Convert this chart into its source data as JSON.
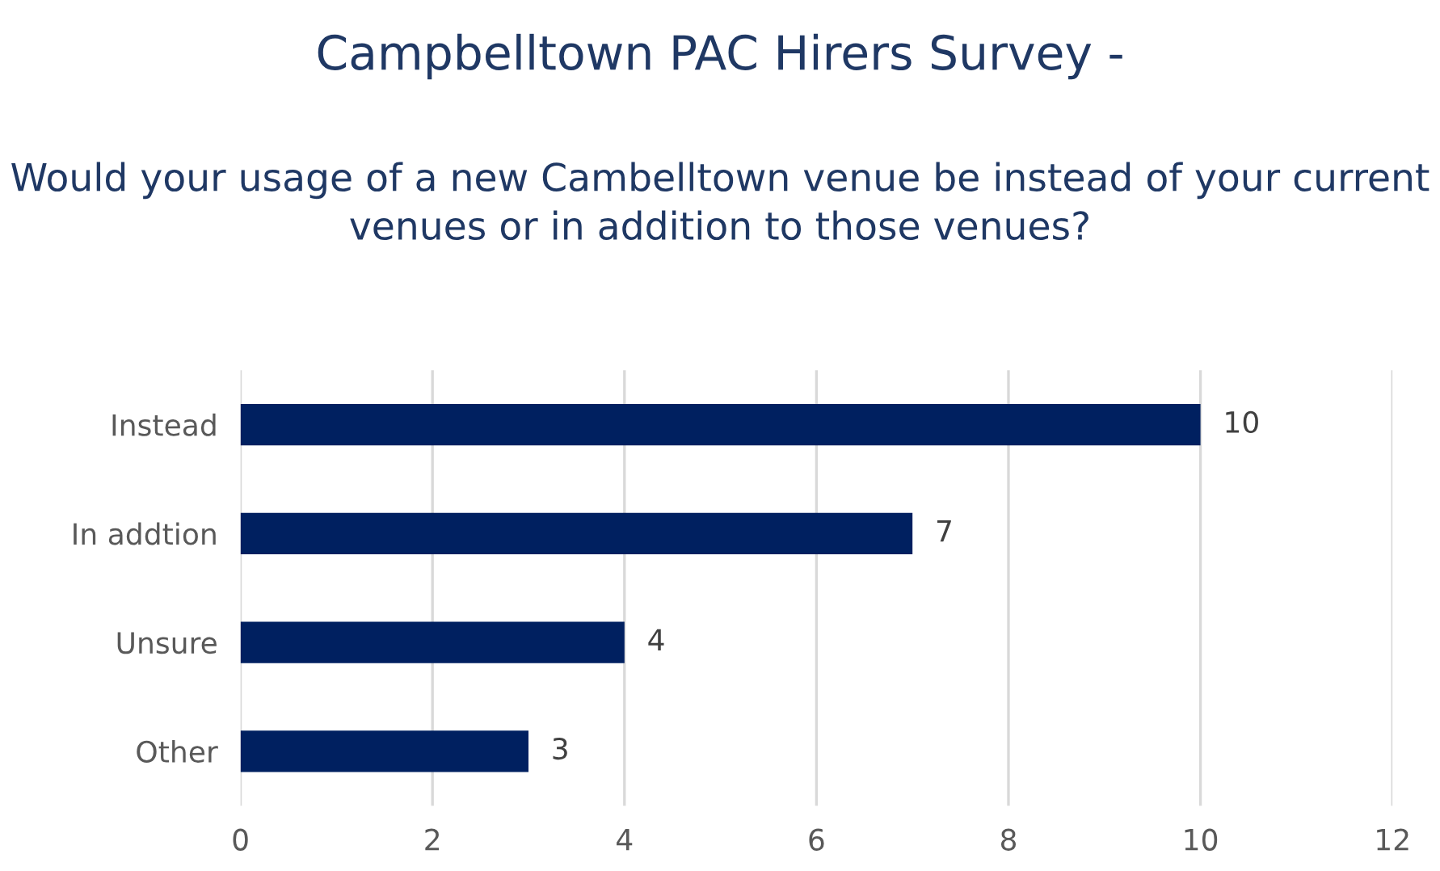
{
  "chart_data": {
    "type": "bar",
    "orientation": "horizontal",
    "title": "Campbelltown PAC Hirers Survey -",
    "subtitle": "Would your usage of a new Cambelltown venue be instead of your current venues or in addition to those venues?",
    "categories": [
      "Instead",
      "In addtion",
      "Unsure",
      "Other"
    ],
    "values": [
      10,
      7,
      4,
      3
    ],
    "color": "#002060",
    "xlim": [
      0,
      12
    ],
    "xticks": [
      0,
      2,
      4,
      6,
      8,
      10,
      12
    ],
    "grid": "x",
    "data_labels": true
  }
}
